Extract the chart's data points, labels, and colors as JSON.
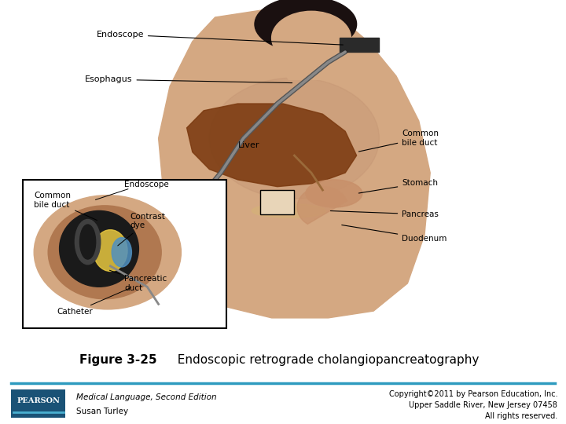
{
  "background_color": "#ffffff",
  "figure_label": "Figure 3-25",
  "figure_title": "  Endoscopic retrograde cholangiopancreatography",
  "caption_left_line1": "Medical Language, Second Edition",
  "caption_left_line2": "Susan Turley",
  "caption_right_line1": "Copyright©2011 by Pearson Education, Inc.",
  "caption_right_line2": "Upper Saddle River, New Jersey 07458",
  "caption_right_line3": "All rights reserved.",
  "pearson_box_color": "#1a5276",
  "pearson_text": "PEARSON",
  "divider_color": "#2e9bbf",
  "fig_label_fontsize": 11,
  "fig_title_fontsize": 11,
  "caption_fontsize": 7.5,
  "pearson_fontsize": 7
}
